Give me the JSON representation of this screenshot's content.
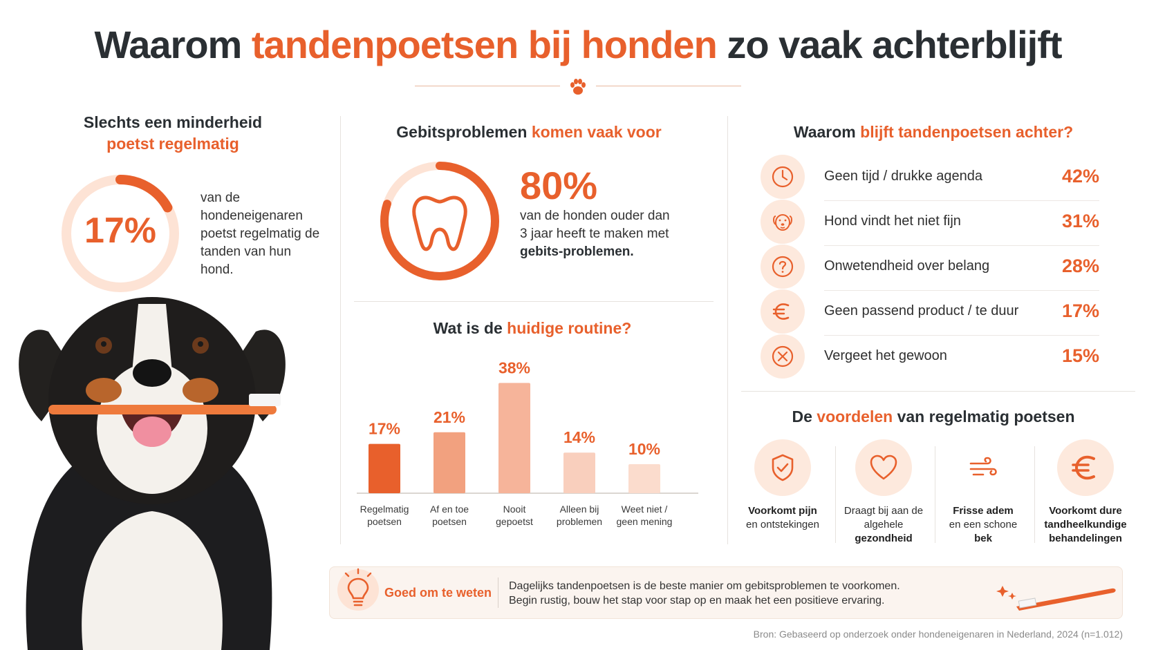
{
  "title": {
    "part1": "Waarom ",
    "part2": "tandenpoetsen bij honden",
    "part3": " zo vaak achterblijft"
  },
  "left": {
    "heading_line1": "Slechts een minderheid",
    "heading_line2": "poetst regelmatig",
    "percent": "17%",
    "percent_value": 0.17,
    "description": "van de hondeneigenaren poetst regelmatig de tanden van hun hond."
  },
  "dental": {
    "heading_part1": "Gebitsproblemen ",
    "heading_part2": "komen vaak voor",
    "percent": "80%",
    "percent_value": 0.8,
    "desc_plain": "van de honden ouder dan 3 jaar heeft te maken met ",
    "desc_bold": "gebits-problemen."
  },
  "routine": {
    "heading_part1": "Wat is de ",
    "heading_part2": "huidige routine?"
  },
  "chart_data": {
    "type": "bar",
    "title": "Wat is de huidige routine?",
    "categories": [
      "Regelmatig poetsen",
      "Af en toe poetsen",
      "Nooit gepoetst",
      "Alleen bij problemen",
      "Weet niet / geen mening"
    ],
    "category_lines": [
      [
        "Regelmatig",
        "poetsen"
      ],
      [
        "Af en toe",
        "poetsen"
      ],
      [
        "Nooit",
        "gepoetst"
      ],
      [
        "Alleen bij",
        "problemen"
      ],
      [
        "Weet niet /",
        "geen mening"
      ]
    ],
    "values": [
      17,
      21,
      38,
      14,
      10
    ],
    "labels": [
      "17%",
      "21%",
      "38%",
      "14%",
      "10%"
    ],
    "colors": [
      "#e8602c",
      "#f2a17f",
      "#f6b49a",
      "#f9cfbd",
      "#fbdccd"
    ],
    "ylim": [
      0,
      40
    ],
    "grid": false
  },
  "reasons": {
    "heading_part1": "Waarom ",
    "heading_part2": "blijft tandenpoetsen achter?",
    "items": [
      {
        "label": "Geen tijd / drukke agenda",
        "pct": "42%",
        "icon": "clock-icon"
      },
      {
        "label": "Hond vindt het niet fijn",
        "pct": "31%",
        "icon": "dog-face-icon"
      },
      {
        "label": "Onwetendheid over belang",
        "pct": "28%",
        "icon": "question-icon"
      },
      {
        "label": "Geen passend product / te duur",
        "pct": "17%",
        "icon": "euro-icon"
      },
      {
        "label": "Vergeet het gewoon",
        "pct": "15%",
        "icon": "x-circle-icon"
      }
    ]
  },
  "benefits": {
    "heading_part1": "De ",
    "heading_part2": "voordelen",
    "heading_part3": " van regelmatig poetsen",
    "items": [
      {
        "bold": "Voorkomt pijn",
        "rest": "en ontstekingen",
        "icon": "shield-check-icon"
      },
      {
        "bold": "gezondheid",
        "rest": "Draagt bij aan de algehele",
        "icon": "heart-icon"
      },
      {
        "bold": "Frisse adem",
        "rest": "en een schone",
        "bold2": "bek",
        "icon": "breath-icon"
      },
      {
        "bold": "Voorkomt dure tandheelkundige behandelingen",
        "rest": "",
        "icon": "euro-icon"
      }
    ]
  },
  "tip": {
    "label": "Goed om te weten",
    "line1": "Dagelijks tandenpoetsen is de beste manier om gebitsproblemen te voorkomen.",
    "line2": "Begin rustig, bouw het stap voor stap op en maak het een positieve ervaring."
  },
  "source": "Bron: Gebaseerd op onderzoek onder hondeneigenaren in Nederland, 2024 (n=1.012)",
  "colors": {
    "accent": "#e8602c",
    "light": "#fde9dd",
    "dark": "#2a2f33"
  }
}
